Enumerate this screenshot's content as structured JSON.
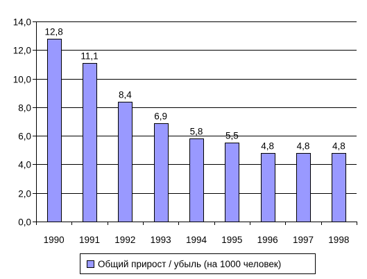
{
  "chart_data": {
    "type": "bar",
    "categories": [
      "1990",
      "1991",
      "1992",
      "1993",
      "1994",
      "1995",
      "1996",
      "1997",
      "1998"
    ],
    "series": [
      {
        "name": "Общий прирост / убыль (на 1000 человек)",
        "values": [
          12.8,
          11.1,
          8.4,
          6.9,
          5.8,
          5.5,
          4.8,
          4.8,
          4.8
        ],
        "value_labels": [
          "12,8",
          "11,1",
          "8,4",
          "6,9",
          "5,8",
          "5,5",
          "4,8",
          "4,8",
          "4,8"
        ]
      }
    ],
    "ylim": [
      0,
      14
    ],
    "y_ticks": [
      0,
      2,
      4,
      6,
      8,
      10,
      12,
      14
    ],
    "y_tick_labels": [
      "0,0",
      "2,0",
      "4,0",
      "6,0",
      "8,0",
      "10,0",
      "12,0",
      "14,0"
    ],
    "grid": "horizontal",
    "legend_position": "bottom",
    "colors": {
      "bar_fill": "#9999ff",
      "bar_stroke": "#000000",
      "grid": "#000000"
    }
  }
}
